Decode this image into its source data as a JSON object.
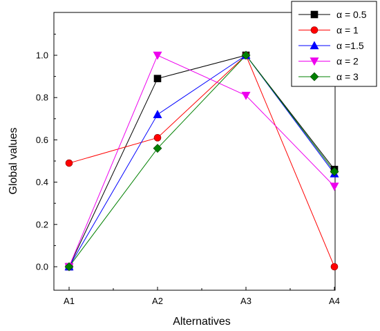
{
  "chart_data": {
    "type": "line",
    "title": "",
    "xlabel": "Alternatives",
    "ylabel": "Global values",
    "categories": [
      "A1",
      "A2",
      "A3",
      "A4"
    ],
    "ylim": [
      -0.1,
      1.22
    ],
    "yticks": [
      "0.0",
      "0.2",
      "0.4",
      "0.6",
      "0.8",
      "1.0"
    ],
    "grid": false,
    "legend_position": "top-right",
    "series": [
      {
        "name": "α = 0.5",
        "values": [
          0.0,
          0.89,
          1.0,
          0.46
        ],
        "color": "#000000",
        "marker": "square"
      },
      {
        "name": "α = 1",
        "values": [
          0.49,
          0.61,
          1.0,
          0.0
        ],
        "color": "#ff0000",
        "marker": "circle"
      },
      {
        "name": "α =1.5",
        "values": [
          0.0,
          0.72,
          1.0,
          0.44
        ],
        "color": "#0000ff",
        "marker": "triangle-up"
      },
      {
        "name": " α = 2",
        "values": [
          0.0,
          1.0,
          0.81,
          0.38
        ],
        "color": "#ee00ee",
        "marker": "triangle-down"
      },
      {
        "name": "α = 3",
        "values": [
          0.0,
          0.56,
          1.0,
          0.45
        ],
        "color": "#008000",
        "marker": "diamond"
      }
    ]
  }
}
